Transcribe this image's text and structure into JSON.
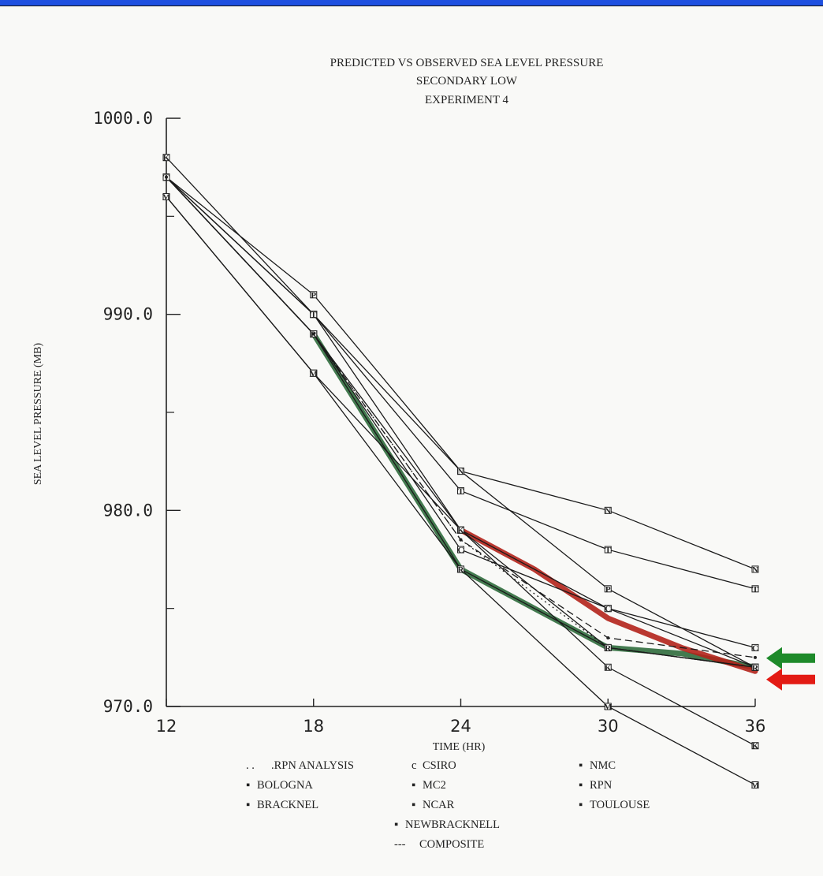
{
  "chart_data": {
    "type": "line",
    "title": "PREDICTED VS OBSERVED SEA LEVEL PRESSURE",
    "subtitle_1": "SECONDARY LOW",
    "subtitle_2": "EXPERIMENT 4",
    "xlabel": "TIME (HR)",
    "ylabel": "SEA LEVEL PRESSURE (MB)",
    "xlim": [
      12,
      36
    ],
    "ylim": [
      970,
      1000
    ],
    "x_ticks": [
      12,
      18,
      24,
      30,
      36
    ],
    "x_tick_labels": [
      "12",
      "18",
      "24",
      "30",
      "36"
    ],
    "y_ticks": [
      970,
      980,
      990,
      1000
    ],
    "y_tick_labels": [
      "970.0",
      "980.0",
      "990.0",
      "1000.0"
    ],
    "y_minor_ticks": [
      975,
      985,
      995
    ],
    "legend_placement": "bottom",
    "series": [
      {
        "name": "RPN ANALYSIS",
        "marker": "",
        "style": "dotted",
        "x": [
          12,
          18,
          24,
          30,
          36
        ],
        "values": [
          997,
          989,
          978.5,
          973,
          972
        ]
      },
      {
        "name": "BOLOGNA",
        "marker": "B",
        "style": "solid",
        "x": [
          12,
          18,
          24,
          30,
          36
        ],
        "values": [
          996,
          987,
          979,
          973,
          972
        ]
      },
      {
        "name": "BRACKNEL",
        "marker": "B",
        "style": "solid",
        "x": [
          12,
          18,
          24,
          30,
          36
        ],
        "values": [
          997,
          989,
          979,
          975,
          972
        ]
      },
      {
        "name": "CSIRO",
        "marker": "C",
        "style": "solid",
        "x": [
          12,
          18,
          24,
          30,
          36
        ],
        "values": [
          997,
          989,
          978,
          975,
          973
        ]
      },
      {
        "name": "MC2",
        "marker": "M",
        "style": "solid",
        "x": [
          12,
          18,
          24,
          30,
          36
        ],
        "values": [
          996,
          987,
          977,
          970,
          966
        ]
      },
      {
        "name": "NCAR",
        "marker": "P",
        "style": "solid",
        "x": [
          12,
          18,
          24,
          30,
          36
        ],
        "values": [
          997,
          991,
          982,
          976,
          972
        ]
      },
      {
        "name": "NEWBRACKNELL",
        "marker": "K",
        "style": "solid",
        "x": [
          12,
          18,
          24,
          30,
          36
        ],
        "values": [
          998,
          990,
          979,
          972,
          968
        ]
      },
      {
        "name": "NMC",
        "marker": "N",
        "style": "solid",
        "x": [
          12,
          18,
          24,
          30,
          36
        ],
        "values": [
          997,
          990,
          982,
          980,
          977
        ]
      },
      {
        "name": "RPN",
        "marker": "R",
        "style": "solid",
        "x": [
          12,
          18,
          24,
          30,
          36
        ],
        "values": [
          997,
          989,
          977,
          973,
          972
        ]
      },
      {
        "name": "TOULOUSE",
        "marker": "T",
        "style": "solid",
        "x": [
          12,
          18,
          24,
          30,
          36
        ],
        "values": [
          997,
          990,
          981,
          978,
          976
        ]
      },
      {
        "name": "COMPOSITE",
        "marker": "",
        "style": "dashed",
        "x": [
          12,
          18,
          24,
          30,
          36
        ],
        "values": [
          997,
          989,
          978.5,
          973.5,
          972.5
        ]
      }
    ],
    "highlights": [
      {
        "color": "#2f6b3c",
        "x": [
          18,
          21,
          24,
          27,
          30,
          33,
          36
        ],
        "values": [
          989,
          983,
          977,
          975,
          973,
          972.7,
          972
        ]
      },
      {
        "color": "#b3221a",
        "x": [
          24,
          27,
          30,
          33,
          36
        ],
        "values": [
          979,
          977,
          974.5,
          973,
          971.8
        ]
      }
    ],
    "arrows": [
      {
        "color": "#1e8a2a",
        "points_at": 972.3
      },
      {
        "color": "#e31b14",
        "points_at": 971.7
      }
    ],
    "legend_items": [
      {
        "marker": ". .",
        "label": ".RPN ANALYSIS"
      },
      {
        "marker": "c",
        "label": "CSIRO"
      },
      {
        "marker": "▪",
        "label": "NMC"
      },
      {
        "marker": "▪",
        "label": "BOLOGNA"
      },
      {
        "marker": "▪",
        "label": "MC2"
      },
      {
        "marker": "▪",
        "label": "RPN"
      },
      {
        "marker": "▪",
        "label": "BRACKNEL"
      },
      {
        "marker": "▪",
        "label": "NCAR"
      },
      {
        "marker": "▪",
        "label": "TOULOUSE"
      },
      {
        "marker": "▪",
        "label": "NEWBRACKNELL"
      },
      {
        "marker": "---",
        "label": "COMPOSITE"
      }
    ]
  }
}
